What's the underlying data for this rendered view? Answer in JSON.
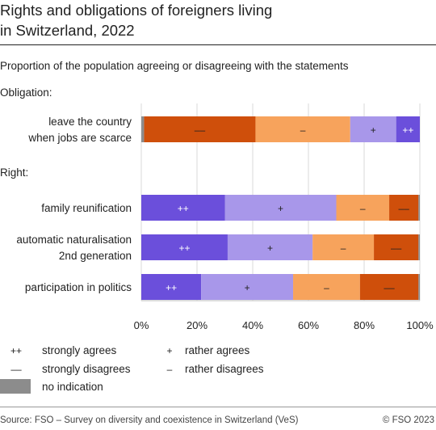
{
  "title_lines": [
    "Rights and obligations of foreigners living",
    "in Switzerland, 2022"
  ],
  "subtitle": "Proportion of the population agreeing or disagreeing with the statements",
  "source": "Source: FSO – Survey on diversity and coexistence in Switzerland (VeS)",
  "copyright": "© FSO 2023",
  "colors": {
    "strongly_agrees": "#6b4fdb",
    "rather_agrees": "#a897ea",
    "rather_disagrees": "#f7a35c",
    "strongly_disagrees": "#cf4f0b",
    "no_indication": "#8c8c8c"
  },
  "chart_data": {
    "type": "bar",
    "orientation": "horizontal",
    "stacked": true,
    "xlim": [
      0,
      100
    ],
    "x_ticks": [
      "0%",
      "20%",
      "40%",
      "60%",
      "80%",
      "100%"
    ],
    "grid": true,
    "segment_order": [
      "no_indication",
      "strongly_agrees",
      "rather_agrees",
      "rather_disagrees",
      "strongly_disagrees"
    ],
    "groups": [
      {
        "label": "Obligation:",
        "rows": [
          {
            "label_lines": [
              "leave the country",
              "when jobs are scarce"
            ],
            "segment_order": [
              "no_indication",
              "strongly_disagrees",
              "rather_disagrees",
              "rather_agrees",
              "strongly_agrees"
            ],
            "segments": [
              {
                "key": "no_indication",
                "value": 1.0,
                "label": ""
              },
              {
                "key": "strongly_agrees",
                "value": 8.5,
                "label": "++"
              },
              {
                "key": "rather_agrees",
                "value": 16.5,
                "label": "+"
              },
              {
                "key": "rather_disagrees",
                "value": 34.0,
                "label": "–"
              },
              {
                "key": "strongly_disagrees",
                "value": 40.0,
                "label": "––"
              }
            ]
          }
        ]
      },
      {
        "label": "Right:",
        "rows": [
          {
            "label_lines": [
              "family reunification"
            ],
            "segments": [
              {
                "key": "strongly_agrees",
                "value": 30.0,
                "label": "++"
              },
              {
                "key": "rather_agrees",
                "value": 40.0,
                "label": "+"
              },
              {
                "key": "rather_disagrees",
                "value": 19.0,
                "label": "–"
              },
              {
                "key": "strongly_disagrees",
                "value": 10.5,
                "label": "––"
              },
              {
                "key": "no_indication",
                "value": 0.5,
                "label": ""
              }
            ]
          },
          {
            "label_lines": [
              "automatic naturalisation",
              "2nd generation"
            ],
            "segments": [
              {
                "key": "strongly_agrees",
                "value": 31.0,
                "label": "++"
              },
              {
                "key": "rather_agrees",
                "value": 30.5,
                "label": "+"
              },
              {
                "key": "rather_disagrees",
                "value": 22.0,
                "label": "–"
              },
              {
                "key": "strongly_disagrees",
                "value": 16.0,
                "label": "––"
              },
              {
                "key": "no_indication",
                "value": 0.5,
                "label": ""
              }
            ]
          },
          {
            "label_lines": [
              "participation in politics"
            ],
            "segments": [
              {
                "key": "strongly_agrees",
                "value": 21.5,
                "label": "++"
              },
              {
                "key": "rather_agrees",
                "value": 33.0,
                "label": "+"
              },
              {
                "key": "rather_disagrees",
                "value": 24.0,
                "label": "–"
              },
              {
                "key": "strongly_disagrees",
                "value": 21.0,
                "label": "––"
              },
              {
                "key": "no_indication",
                "value": 0.5,
                "label": ""
              }
            ]
          }
        ]
      }
    ],
    "legend": {
      "placement": "bottom",
      "items": [
        {
          "key": "strongly_agrees",
          "symbol": "++",
          "label": "strongly agrees"
        },
        {
          "key": "rather_agrees",
          "symbol": "+",
          "label": "rather agrees"
        },
        {
          "key": "strongly_disagrees",
          "symbol": "––",
          "label": "strongly disagrees"
        },
        {
          "key": "rather_disagrees",
          "symbol": "–",
          "label": "rather disagrees"
        },
        {
          "key": "no_indication",
          "symbol": "",
          "label": "no indication"
        }
      ]
    }
  }
}
